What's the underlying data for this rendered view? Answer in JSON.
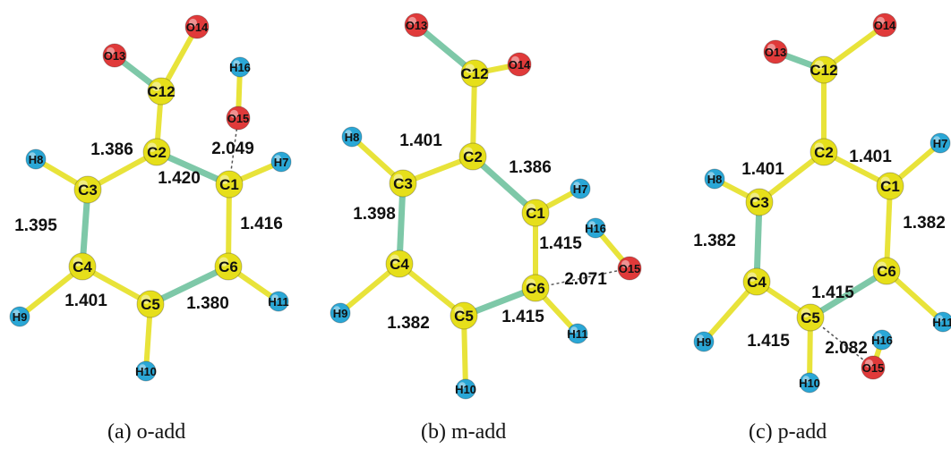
{
  "colors": {
    "carbon": "#e6df1a",
    "oxygen": "#e03a3a",
    "hydrogen": "#2aa7d6",
    "bond_single": "#e8e33a",
    "bond_double": "#7ec8a8",
    "label": "#111111"
  },
  "panels": [
    {
      "caption": "(a) o-add",
      "atoms": [
        {
          "id": "C1",
          "el": "C"
        },
        {
          "id": "C2",
          "el": "C"
        },
        {
          "id": "C3",
          "el": "C"
        },
        {
          "id": "C4",
          "el": "C"
        },
        {
          "id": "C5",
          "el": "C"
        },
        {
          "id": "C6",
          "el": "C"
        },
        {
          "id": "C12",
          "el": "C"
        },
        {
          "id": "O13",
          "el": "O"
        },
        {
          "id": "O14",
          "el": "O"
        },
        {
          "id": "O15",
          "el": "O"
        },
        {
          "id": "H7",
          "el": "H"
        },
        {
          "id": "H8",
          "el": "H"
        },
        {
          "id": "H9",
          "el": "H"
        },
        {
          "id": "H10",
          "el": "H"
        },
        {
          "id": "H11",
          "el": "H"
        },
        {
          "id": "H16",
          "el": "H"
        }
      ],
      "bond_labels": [
        {
          "text": "1.386",
          "bond": "C2-C3"
        },
        {
          "text": "2.049",
          "bond": "C1-O15"
        },
        {
          "text": "1.420",
          "bond": "C1-C2"
        },
        {
          "text": "1.395",
          "bond": "C3-C4"
        },
        {
          "text": "1.416",
          "bond": "C1-C6"
        },
        {
          "text": "1.401",
          "bond": "C4-C5"
        },
        {
          "text": "1.380",
          "bond": "C5-C6"
        }
      ]
    },
    {
      "caption": "(b) m-add",
      "atoms": [
        {
          "id": "C1",
          "el": "C"
        },
        {
          "id": "C2",
          "el": "C"
        },
        {
          "id": "C3",
          "el": "C"
        },
        {
          "id": "C4",
          "el": "C"
        },
        {
          "id": "C5",
          "el": "C"
        },
        {
          "id": "C6",
          "el": "C"
        },
        {
          "id": "C12",
          "el": "C"
        },
        {
          "id": "O13",
          "el": "O"
        },
        {
          "id": "O14",
          "el": "O"
        },
        {
          "id": "O15",
          "el": "O"
        },
        {
          "id": "H7",
          "el": "H"
        },
        {
          "id": "H8",
          "el": "H"
        },
        {
          "id": "H9",
          "el": "H"
        },
        {
          "id": "H10",
          "el": "H"
        },
        {
          "id": "H11",
          "el": "H"
        },
        {
          "id": "H16",
          "el": "H"
        }
      ],
      "bond_labels": [
        {
          "text": "1.401",
          "bond": "C2-C3"
        },
        {
          "text": "1.386",
          "bond": "C1-C2"
        },
        {
          "text": "1.398",
          "bond": "C3-C4"
        },
        {
          "text": "1.415",
          "bond": "C1-C6"
        },
        {
          "text": "2.071",
          "bond": "C6-O15"
        },
        {
          "text": "1.382",
          "bond": "C4-C5"
        },
        {
          "text": "1.415",
          "bond": "C5-C6"
        }
      ]
    },
    {
      "caption": "(c) p-add",
      "atoms": [
        {
          "id": "C1",
          "el": "C"
        },
        {
          "id": "C2",
          "el": "C"
        },
        {
          "id": "C3",
          "el": "C"
        },
        {
          "id": "C4",
          "el": "C"
        },
        {
          "id": "C5",
          "el": "C"
        },
        {
          "id": "C6",
          "el": "C"
        },
        {
          "id": "C12",
          "el": "C"
        },
        {
          "id": "O13",
          "el": "O"
        },
        {
          "id": "O14",
          "el": "O"
        },
        {
          "id": "O15",
          "el": "O"
        },
        {
          "id": "H7",
          "el": "H"
        },
        {
          "id": "H8",
          "el": "H"
        },
        {
          "id": "H9",
          "el": "H"
        },
        {
          "id": "H10",
          "el": "H"
        },
        {
          "id": "H11",
          "el": "H"
        },
        {
          "id": "H16",
          "el": "H"
        }
      ],
      "bond_labels": [
        {
          "text": "1.401",
          "bond": "C2-C3"
        },
        {
          "text": "1.401",
          "bond": "C1-C2"
        },
        {
          "text": "1.382",
          "bond": "C3-C4"
        },
        {
          "text": "1.382",
          "bond": "C1-C6"
        },
        {
          "text": "1.415",
          "bond": "C5-C6"
        },
        {
          "text": "1.415",
          "bond": "C4-C5"
        },
        {
          "text": "2.082",
          "bond": "C5-O15"
        }
      ]
    }
  ]
}
